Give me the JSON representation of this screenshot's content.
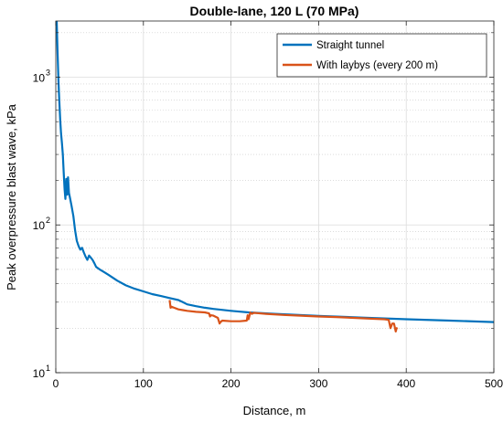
{
  "chart_data": {
    "type": "line",
    "title": "Double-lane, 120 L (70 MPa)",
    "xlabel": "Distance, m",
    "ylabel": "Peak overpressure blast wave, kPa",
    "xlim": [
      0,
      500
    ],
    "ylim": [
      10,
      2400
    ],
    "yscale": "log",
    "grid": true,
    "legend_placement": "top-right",
    "x_ticks": [
      0,
      100,
      200,
      300,
      400,
      500
    ],
    "x_tick_labels": [
      "0",
      "100",
      "200",
      "300",
      "400",
      "500"
    ],
    "y_ticks": [
      10,
      100,
      1000
    ],
    "y_tick_labels": [
      {
        "base": "10",
        "exp": "1"
      },
      {
        "base": "10",
        "exp": "2"
      },
      {
        "base": "10",
        "exp": "3"
      }
    ],
    "series": [
      {
        "name": "Straight tunnel",
        "color": "#0072BD",
        "points": [
          [
            1,
            2400
          ],
          [
            2,
            1500
          ],
          [
            3,
            950
          ],
          [
            4,
            700
          ],
          [
            5,
            520
          ],
          [
            6,
            420
          ],
          [
            7,
            360
          ],
          [
            8,
            300
          ],
          [
            9,
            230
          ],
          [
            10,
            175
          ],
          [
            11,
            150
          ],
          [
            12,
            205
          ],
          [
            13,
            160
          ],
          [
            14,
            210
          ],
          [
            15,
            165
          ],
          [
            16,
            155
          ],
          [
            18,
            135
          ],
          [
            20,
            115
          ],
          [
            22,
            92
          ],
          [
            24,
            78
          ],
          [
            26,
            72
          ],
          [
            28,
            68
          ],
          [
            30,
            70
          ],
          [
            32,
            65
          ],
          [
            34,
            61
          ],
          [
            36,
            58
          ],
          [
            38,
            62
          ],
          [
            40,
            60
          ],
          [
            42,
            58
          ],
          [
            44,
            55
          ],
          [
            46,
            52
          ],
          [
            50,
            50
          ],
          [
            55,
            48
          ],
          [
            60,
            46
          ],
          [
            70,
            42
          ],
          [
            80,
            39
          ],
          [
            90,
            37
          ],
          [
            100,
            35.5
          ],
          [
            110,
            34
          ],
          [
            120,
            33
          ],
          [
            130,
            32
          ],
          [
            140,
            31
          ],
          [
            145,
            30
          ],
          [
            150,
            29
          ],
          [
            160,
            28.2
          ],
          [
            170,
            27.5
          ],
          [
            180,
            27
          ],
          [
            200,
            26.2
          ],
          [
            220,
            25.6
          ],
          [
            250,
            25
          ],
          [
            300,
            24.2
          ],
          [
            350,
            23.6
          ],
          [
            400,
            23
          ],
          [
            450,
            22.5
          ],
          [
            500,
            22
          ]
        ]
      },
      {
        "name": "With laybys (every 200 m)",
        "color": "#D95319",
        "points": [
          [
            130,
            31
          ],
          [
            131,
            27.5
          ],
          [
            132,
            28
          ],
          [
            135,
            27.5
          ],
          [
            140,
            26.8
          ],
          [
            145,
            26.5
          ],
          [
            150,
            26.2
          ],
          [
            160,
            25.8
          ],
          [
            170,
            25.6
          ],
          [
            175,
            25.2
          ],
          [
            176,
            24
          ],
          [
            177,
            24.5
          ],
          [
            180,
            24.3
          ],
          [
            185,
            23.5
          ],
          [
            187,
            21.5
          ],
          [
            188,
            22
          ],
          [
            190,
            22.5
          ],
          [
            200,
            22.3
          ],
          [
            210,
            22.3
          ],
          [
            218,
            22.5
          ],
          [
            219,
            24.5
          ],
          [
            220,
            23
          ],
          [
            222,
            25.5
          ],
          [
            224,
            25
          ],
          [
            226,
            25.4
          ],
          [
            230,
            25.3
          ],
          [
            240,
            25
          ],
          [
            260,
            24.6
          ],
          [
            280,
            24.3
          ],
          [
            300,
            24
          ],
          [
            320,
            23.8
          ],
          [
            340,
            23.5
          ],
          [
            360,
            23.2
          ],
          [
            375,
            23
          ],
          [
            380,
            22.8
          ],
          [
            382,
            20
          ],
          [
            384,
            21.5
          ],
          [
            386,
            21.5
          ],
          [
            388,
            19
          ],
          [
            389,
            20
          ],
          [
            390,
            19.8
          ]
        ]
      }
    ]
  }
}
